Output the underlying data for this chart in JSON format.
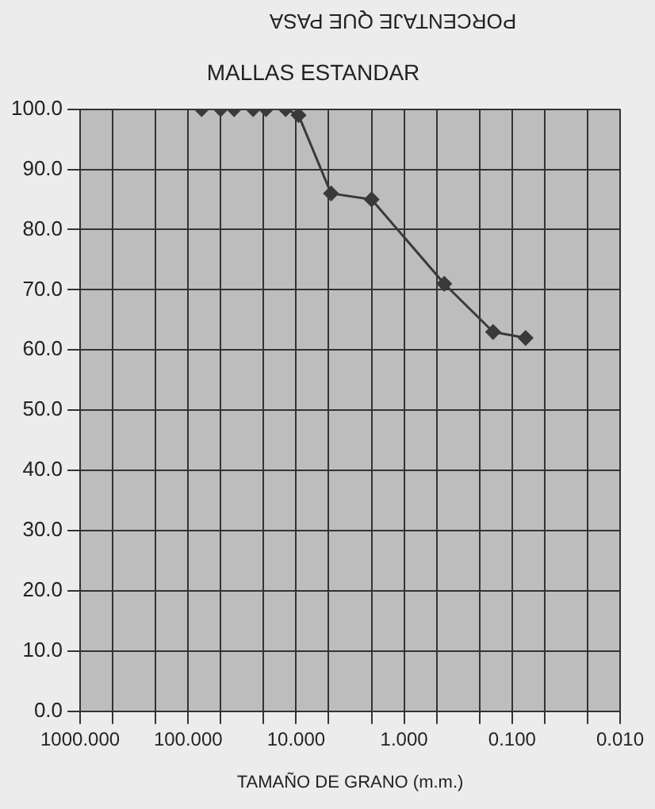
{
  "chart_data": {
    "type": "line",
    "title": "MALLAS ESTANDAR",
    "xlabel": "TAMAÑO DE GRANO (m.m.)",
    "ylabel": "PORCENTAJE QUE PASA",
    "x": [
      75,
      50,
      37.5,
      25,
      19,
      12.5,
      9.5,
      4.75,
      2.0,
      0.425,
      0.15,
      0.075
    ],
    "series": [
      {
        "color": "#3a3a3a",
        "values": [
          100,
          100,
          100,
          100,
          100,
          100,
          99,
          86,
          85,
          71,
          63,
          62
        ]
      }
    ],
    "log": "x",
    "xlim": [
      1000,
      0.01
    ],
    "xticks": [
      {
        "value": 1000,
        "label": "1000.000"
      },
      {
        "value": 500,
        "label": null
      },
      {
        "value": 200,
        "label": null
      },
      {
        "value": 100,
        "label": "100.000"
      },
      {
        "value": 50,
        "label": null
      },
      {
        "value": 20,
        "label": null
      },
      {
        "value": 10,
        "label": "10.000"
      },
      {
        "value": 5,
        "label": null
      },
      {
        "value": 2,
        "label": null
      },
      {
        "value": 1,
        "label": "1.000"
      },
      {
        "value": 0.5,
        "label": null
      },
      {
        "value": 0.2,
        "label": null
      },
      {
        "value": 0.1,
        "label": "0.100"
      },
      {
        "value": 0.05,
        "label": null
      },
      {
        "value": 0.02,
        "label": null
      },
      {
        "value": 0.01,
        "label": "0.010"
      }
    ],
    "ylim": [
      0,
      100
    ],
    "yticks": [
      {
        "value": 0,
        "label": "0.0"
      },
      {
        "value": 10,
        "label": "10.0"
      },
      {
        "value": 20,
        "label": "20.0"
      },
      {
        "value": 30,
        "label": "30.0"
      },
      {
        "value": 40,
        "label": "40.0"
      },
      {
        "value": 50,
        "label": "50.0"
      },
      {
        "value": 60,
        "label": "60.0"
      },
      {
        "value": 70,
        "label": "70.0"
      },
      {
        "value": 80,
        "label": "80.0"
      },
      {
        "value": 90,
        "label": "90.0"
      },
      {
        "value": 100,
        "label": "100.0"
      }
    ],
    "grid": true,
    "legend": false,
    "marker": "diamond",
    "line_style": "solid"
  }
}
